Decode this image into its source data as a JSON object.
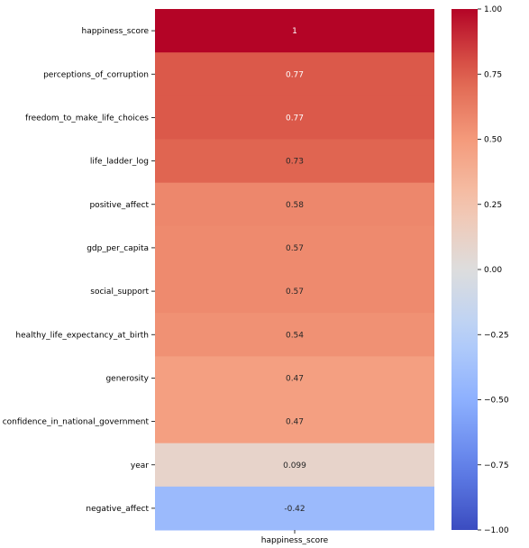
{
  "chart_data": {
    "type": "heatmap",
    "columns": [
      "happiness_score"
    ],
    "rows": [
      "happiness_score",
      "perceptions_of_corruption",
      "freedom_to_make_life_choices",
      "life_ladder_log",
      "positive_affect",
      "gdp_per_capita",
      "social_support",
      "healthy_life_expectancy_at_birth",
      "generosity",
      "confidence_in_national_government",
      "year",
      "negative_affect"
    ],
    "values": [
      1,
      0.77,
      0.77,
      0.73,
      0.58,
      0.57,
      0.57,
      0.54,
      0.47,
      0.47,
      0.099,
      -0.42
    ],
    "value_labels": [
      "1",
      "0.77",
      "0.77",
      "0.73",
      "0.58",
      "0.57",
      "0.57",
      "0.54",
      "0.47",
      "0.47",
      "0.099",
      "-0.42"
    ],
    "colormap": "coolwarm",
    "vmin": -1,
    "vmax": 1,
    "colorbar_ticks": [
      1.0,
      0.75,
      0.5,
      0.25,
      0.0,
      -0.25,
      -0.5,
      -0.75,
      -1.0
    ],
    "colorbar_tick_labels": [
      "1.00",
      "0.75",
      "0.50",
      "0.25",
      "0.00",
      "−0.25",
      "−0.50",
      "−0.75",
      "−1.00"
    ],
    "title": "",
    "xlabel": "",
    "ylabel": ""
  }
}
